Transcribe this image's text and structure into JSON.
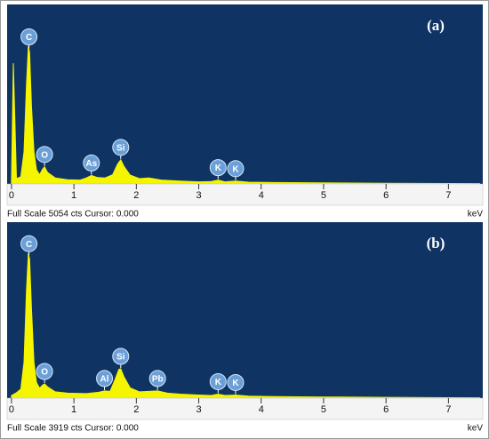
{
  "chart_data": [
    {
      "type": "area",
      "panel_label": "(a)",
      "color": "#f5f500",
      "background": "#0f3463",
      "x": [
        0.0,
        0.03,
        0.08,
        0.15,
        0.2,
        0.24,
        0.27,
        0.29,
        0.32,
        0.36,
        0.4,
        0.45,
        0.5,
        0.53,
        0.58,
        0.7,
        0.9,
        1.1,
        1.2,
        1.28,
        1.38,
        1.5,
        1.62,
        1.7,
        1.75,
        1.8,
        1.9,
        2.05,
        2.2,
        2.4,
        2.7,
        3.0,
        3.2,
        3.31,
        3.42,
        3.59,
        3.8,
        4.2,
        5.0,
        6.0,
        7.0,
        7.5
      ],
      "values": [
        100,
        3400,
        150,
        200,
        900,
        2800,
        3880,
        3700,
        2200,
        900,
        400,
        260,
        420,
        480,
        320,
        170,
        120,
        110,
        170,
        240,
        180,
        170,
        260,
        560,
        680,
        500,
        250,
        150,
        170,
        110,
        80,
        60,
        70,
        110,
        60,
        80,
        50,
        40,
        30,
        20,
        12,
        10
      ],
      "xlim": [
        -0.07,
        7.55
      ],
      "ylim": [
        0,
        5054
      ],
      "xticks": [
        0,
        1,
        2,
        3,
        4,
        5,
        6,
        7
      ],
      "annotations": [
        {
          "text": "C",
          "x": 0.28
        },
        {
          "text": "O",
          "x": 0.53
        },
        {
          "text": "As",
          "x": 1.28
        },
        {
          "text": "Si",
          "x": 1.75
        },
        {
          "text": "K",
          "x": 3.31
        },
        {
          "text": "K",
          "x": 3.59
        }
      ],
      "footer": "Full Scale 5054 cts Cursor: 0.000",
      "x_unit": "keV"
    },
    {
      "type": "area",
      "panel_label": "(b)",
      "color": "#f5f500",
      "background": "#0f3463",
      "x": [
        0.0,
        0.08,
        0.15,
        0.2,
        0.24,
        0.27,
        0.29,
        0.32,
        0.36,
        0.4,
        0.45,
        0.5,
        0.53,
        0.58,
        0.7,
        0.9,
        1.2,
        1.4,
        1.49,
        1.58,
        1.66,
        1.72,
        1.75,
        1.8,
        1.9,
        2.05,
        2.2,
        2.34,
        2.5,
        2.7,
        3.0,
        3.2,
        3.31,
        3.42,
        3.59,
        3.8,
        4.2,
        5.0,
        6.0,
        7.0,
        7.5
      ],
      "values": [
        60,
        120,
        200,
        800,
        2400,
        3226,
        3100,
        2000,
        800,
        350,
        220,
        290,
        317,
        250,
        140,
        110,
        100,
        130,
        160,
        150,
        420,
        640,
        653,
        480,
        230,
        140,
        150,
        160,
        110,
        90,
        70,
        60,
        90,
        60,
        70,
        45,
        35,
        25,
        18,
        10,
        8
      ],
      "xlim": [
        -0.07,
        7.55
      ],
      "ylim": [
        0,
        3919
      ],
      "xticks": [
        0,
        1,
        2,
        3,
        4,
        5,
        6,
        7
      ],
      "annotations": [
        {
          "text": "C",
          "x": 0.28
        },
        {
          "text": "O",
          "x": 0.53
        },
        {
          "text": "Al",
          "x": 1.49
        },
        {
          "text": "Si",
          "x": 1.75
        },
        {
          "text": "Pb",
          "x": 2.34
        },
        {
          "text": "K",
          "x": 3.31
        },
        {
          "text": "K",
          "x": 3.59
        }
      ],
      "footer": "Full Scale 3919 cts Cursor: 0.000",
      "x_unit": "keV"
    }
  ]
}
